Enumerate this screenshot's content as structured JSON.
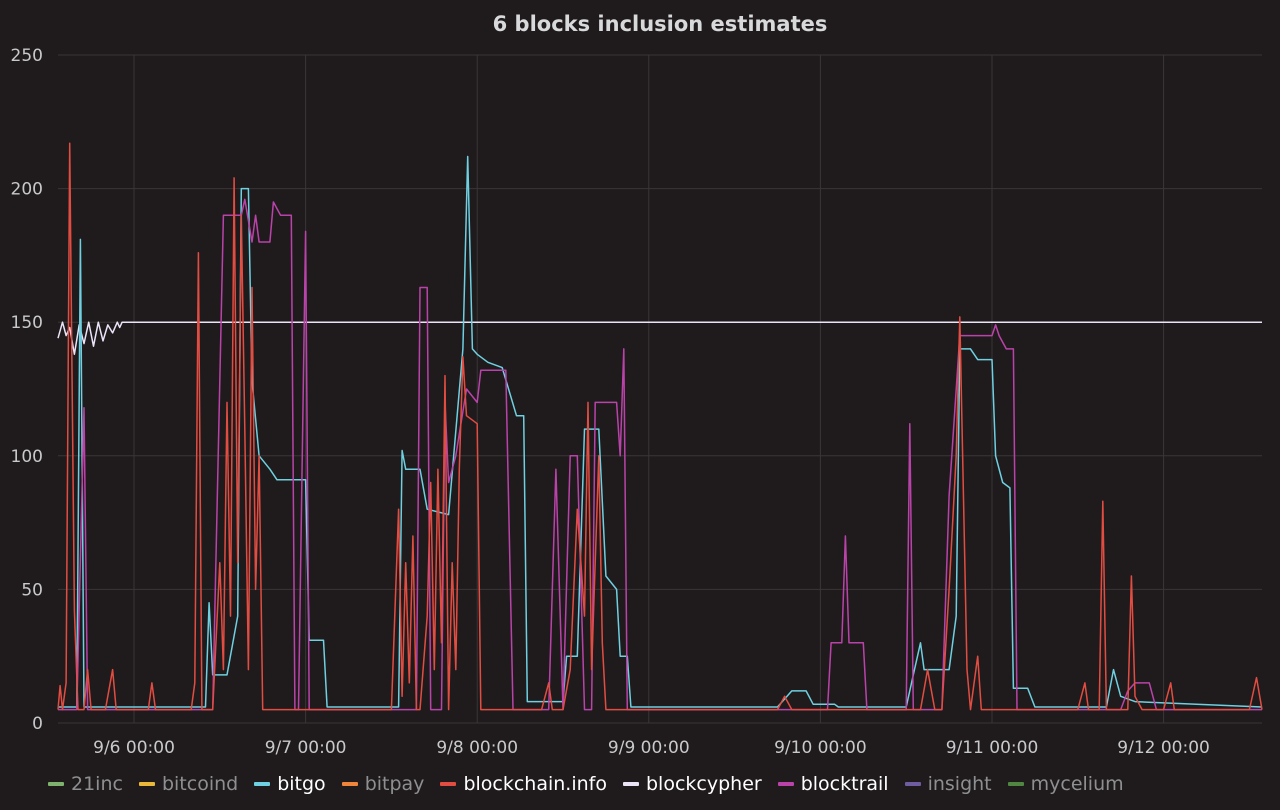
{
  "chart_data": {
    "type": "line",
    "title": "6 blocks inclusion estimates",
    "xlabel": "",
    "ylabel": "",
    "ylim": [
      0,
      250
    ],
    "yticks": [
      0,
      50,
      100,
      150,
      200,
      250
    ],
    "xlim": [
      "9/5 13:22",
      "9/12 13:46"
    ],
    "xticks": [
      "9/6 00:00",
      "9/7 00:00",
      "9/8 00:00",
      "9/9 00:00",
      "9/10 00:00",
      "9/11 00:00",
      "9/12 00:00"
    ],
    "grid": true,
    "legend_position": "bottom-left",
    "legend": [
      {
        "name": "21inc",
        "color": "#7eb26d",
        "highlighted": false
      },
      {
        "name": "bitcoind",
        "color": "#eab839",
        "highlighted": false
      },
      {
        "name": "bitgo",
        "color": "#6ed0e0",
        "highlighted": true
      },
      {
        "name": "bitpay",
        "color": "#ef843c",
        "highlighted": false
      },
      {
        "name": "blockchain.info",
        "color": "#e24d42",
        "highlighted": true
      },
      {
        "name": "blockcypher",
        "color": "#ebe3f8",
        "highlighted": true
      },
      {
        "name": "blocktrail",
        "color": "#ba43a9",
        "highlighted": true
      },
      {
        "name": "insight",
        "color": "#705da0",
        "highlighted": false
      },
      {
        "name": "mycelium",
        "color": "#508642",
        "highlighted": false
      }
    ],
    "series": [
      {
        "name": "blockcypher",
        "color": "#ebe3f8",
        "points": [
          [
            "9/5 13:22",
            144
          ],
          [
            "9/5 14:00",
            150
          ],
          [
            "9/5 14:30",
            145
          ],
          [
            "9/5 15:00",
            148
          ],
          [
            "9/5 15:40",
            138
          ],
          [
            "9/5 16:20",
            149
          ],
          [
            "9/5 17:00",
            142
          ],
          [
            "9/5 17:40",
            150
          ],
          [
            "9/5 18:20",
            141
          ],
          [
            "9/5 19:00",
            150
          ],
          [
            "9/5 19:40",
            143
          ],
          [
            "9/5 20:20",
            149
          ],
          [
            "9/5 21:00",
            146
          ],
          [
            "9/5 21:40",
            150
          ],
          [
            "9/5 22:00",
            148
          ],
          [
            "9/5 22:20",
            150
          ],
          [
            "9/12 13:46",
            150
          ]
        ]
      },
      {
        "name": "bitgo",
        "color": "#6ed0e0",
        "points": [
          [
            "9/5 13:22",
            6
          ],
          [
            "9/5 16:00",
            6
          ],
          [
            "9/5 16:30",
            181
          ],
          [
            "9/5 17:00",
            6
          ],
          [
            "9/6 10:00",
            6
          ],
          [
            "9/6 10:30",
            45
          ],
          [
            "9/6 11:00",
            18
          ],
          [
            "9/6 13:00",
            18
          ],
          [
            "9/6 14:30",
            40
          ],
          [
            "9/6 15:00",
            200
          ],
          [
            "9/6 16:00",
            200
          ],
          [
            "9/6 16:30",
            128
          ],
          [
            "9/6 17:30",
            100
          ],
          [
            "9/6 19:00",
            95
          ],
          [
            "9/6 20:00",
            91
          ],
          [
            "9/7 00:00",
            91
          ],
          [
            "9/7 00:30",
            31
          ],
          [
            "9/7 02:30",
            31
          ],
          [
            "9/7 03:00",
            6
          ],
          [
            "9/7 13:00",
            6
          ],
          [
            "9/7 13:30",
            102
          ],
          [
            "9/7 14:00",
            95
          ],
          [
            "9/7 16:00",
            95
          ],
          [
            "9/7 17:00",
            80
          ],
          [
            "9/7 20:00",
            78
          ],
          [
            "9/7 22:00",
            140
          ],
          [
            "9/7 22:40",
            212
          ],
          [
            "9/7 23:20",
            140
          ],
          [
            "9/8 00:00",
            138
          ],
          [
            "9/8 01:30",
            135
          ],
          [
            "9/8 03:30",
            133
          ],
          [
            "9/8 05:30",
            115
          ],
          [
            "9/8 06:30",
            115
          ],
          [
            "9/8 07:00",
            8
          ],
          [
            "9/8 12:00",
            8
          ],
          [
            "9/8 12:30",
            25
          ],
          [
            "9/8 14:00",
            25
          ],
          [
            "9/8 15:00",
            110
          ],
          [
            "9/8 17:00",
            110
          ],
          [
            "9/8 18:00",
            55
          ],
          [
            "9/8 19:30",
            50
          ],
          [
            "9/8 20:00",
            25
          ],
          [
            "9/8 21:00",
            25
          ],
          [
            "9/8 21:30",
            6
          ],
          [
            "9/9 18:00",
            6
          ],
          [
            "9/9 20:00",
            12
          ],
          [
            "9/9 22:00",
            12
          ],
          [
            "9/9 23:00",
            7
          ],
          [
            "9/10 02:00",
            7
          ],
          [
            "9/10 02:30",
            6
          ],
          [
            "9/10 12:00",
            6
          ],
          [
            "9/10 13:00",
            18
          ],
          [
            "9/10 14:00",
            30
          ],
          [
            "9/10 14:30",
            20
          ],
          [
            "9/10 18:00",
            20
          ],
          [
            "9/10 19:00",
            40
          ],
          [
            "9/10 19:30",
            140
          ],
          [
            "9/10 21:00",
            140
          ],
          [
            "9/10 22:00",
            136
          ],
          [
            "9/11 00:00",
            136
          ],
          [
            "9/11 00:30",
            100
          ],
          [
            "9/11 01:30",
            90
          ],
          [
            "9/11 02:30",
            88
          ],
          [
            "9/11 03:00",
            13
          ],
          [
            "9/11 05:00",
            13
          ],
          [
            "9/11 06:00",
            6
          ],
          [
            "9/11 16:00",
            6
          ],
          [
            "9/11 17:00",
            20
          ],
          [
            "9/11 18:00",
            10
          ],
          [
            "9/11 20:00",
            8
          ],
          [
            "9/12 13:46",
            6
          ]
        ]
      },
      {
        "name": "blocktrail",
        "color": "#ba43a9",
        "points": [
          [
            "9/5 13:22",
            5
          ],
          [
            "9/5 16:00",
            5
          ],
          [
            "9/5 17:00",
            118
          ],
          [
            "9/5 17:30",
            5
          ],
          [
            "9/6 11:00",
            5
          ],
          [
            "9/6 12:30",
            190
          ],
          [
            "9/6 15:00",
            190
          ],
          [
            "9/6 15:30",
            196
          ],
          [
            "9/6 16:30",
            180
          ],
          [
            "9/6 17:00",
            190
          ],
          [
            "9/6 17:30",
            180
          ],
          [
            "9/6 19:00",
            180
          ],
          [
            "9/6 19:30",
            195
          ],
          [
            "9/6 20:30",
            190
          ],
          [
            "9/6 22:00",
            190
          ],
          [
            "9/6 22:30",
            5
          ],
          [
            "9/6 23:00",
            5
          ],
          [
            "9/7 00:00",
            184
          ],
          [
            "9/7 00:30",
            5
          ],
          [
            "9/7 12:00",
            5
          ],
          [
            "9/7 13:00",
            5
          ],
          [
            "9/7 15:30",
            5
          ],
          [
            "9/7 16:00",
            163
          ],
          [
            "9/7 17:00",
            163
          ],
          [
            "9/7 17:30",
            5
          ],
          [
            "9/7 19:00",
            5
          ],
          [
            "9/7 19:30",
            120
          ],
          [
            "9/7 20:00",
            90
          ],
          [
            "9/7 21:00",
            100
          ],
          [
            "9/7 22:30",
            125
          ],
          [
            "9/8 00:00",
            120
          ],
          [
            "9/8 00:30",
            132
          ],
          [
            "9/8 04:00",
            132
          ],
          [
            "9/8 05:00",
            5
          ],
          [
            "9/8 10:00",
            5
          ],
          [
            "9/8 11:00",
            95
          ],
          [
            "9/8 12:00",
            5
          ],
          [
            "9/8 13:00",
            100
          ],
          [
            "9/8 14:00",
            100
          ],
          [
            "9/8 15:00",
            5
          ],
          [
            "9/8 16:00",
            5
          ],
          [
            "9/8 16:30",
            120
          ],
          [
            "9/8 19:30",
            120
          ],
          [
            "9/8 20:00",
            100
          ],
          [
            "9/8 20:30",
            140
          ],
          [
            "9/8 21:00",
            5
          ],
          [
            "9/10 01:00",
            5
          ],
          [
            "9/10 01:30",
            30
          ],
          [
            "9/10 03:00",
            30
          ],
          [
            "9/10 03:30",
            70
          ],
          [
            "9/10 04:00",
            30
          ],
          [
            "9/10 06:00",
            30
          ],
          [
            "9/10 06:30",
            5
          ],
          [
            "9/10 10:00",
            5
          ],
          [
            "9/10 10:30",
            5
          ],
          [
            "9/10 12:00",
            5
          ],
          [
            "9/10 12:30",
            112
          ],
          [
            "9/10 13:00",
            5
          ],
          [
            "9/10 17:00",
            5
          ],
          [
            "9/10 18:00",
            85
          ],
          [
            "9/10 19:30",
            145
          ],
          [
            "9/11 00:00",
            145
          ],
          [
            "9/11 00:30",
            149
          ],
          [
            "9/11 01:00",
            145
          ],
          [
            "9/11 02:00",
            140
          ],
          [
            "9/11 03:00",
            140
          ],
          [
            "9/11 03:30",
            5
          ],
          [
            "9/11 11:00",
            5
          ],
          [
            "9/11 18:00",
            5
          ],
          [
            "9/11 19:00",
            12
          ],
          [
            "9/11 20:00",
            15
          ],
          [
            "9/11 22:00",
            15
          ],
          [
            "9/11 23:00",
            5
          ],
          [
            "9/12 13:46",
            5
          ]
        ]
      },
      {
        "name": "blockchain.info",
        "color": "#e24d42",
        "points": [
          [
            "9/5 13:22",
            5
          ],
          [
            "9/5 13:40",
            14
          ],
          [
            "9/5 14:00",
            5
          ],
          [
            "9/5 14:30",
            15
          ],
          [
            "9/5 15:00",
            217
          ],
          [
            "9/5 15:40",
            42
          ],
          [
            "9/5 16:10",
            5
          ],
          [
            "9/5 17:00",
            5
          ],
          [
            "9/5 17:30",
            20
          ],
          [
            "9/5 18:00",
            5
          ],
          [
            "9/5 20:00",
            5
          ],
          [
            "9/5 21:00",
            20
          ],
          [
            "9/5 21:30",
            5
          ],
          [
            "9/6 00:00",
            5
          ],
          [
            "9/6 02:00",
            5
          ],
          [
            "9/6 02:30",
            15
          ],
          [
            "9/6 03:00",
            5
          ],
          [
            "9/6 08:00",
            5
          ],
          [
            "9/6 08:30",
            15
          ],
          [
            "9/6 09:00",
            176
          ],
          [
            "9/6 09:30",
            5
          ],
          [
            "9/6 11:00",
            5
          ],
          [
            "9/6 12:00",
            60
          ],
          [
            "9/6 12:30",
            20
          ],
          [
            "9/6 13:00",
            120
          ],
          [
            "9/6 13:30",
            40
          ],
          [
            "9/6 14:00",
            204
          ],
          [
            "9/6 14:30",
            60
          ],
          [
            "9/6 15:00",
            190
          ],
          [
            "9/6 15:30",
            110
          ],
          [
            "9/6 16:00",
            20
          ],
          [
            "9/6 16:30",
            163
          ],
          [
            "9/6 17:00",
            50
          ],
          [
            "9/6 17:30",
            100
          ],
          [
            "9/6 18:00",
            5
          ],
          [
            "9/7 02:00",
            5
          ],
          [
            "9/7 09:00",
            5
          ],
          [
            "9/7 10:00",
            5
          ],
          [
            "9/7 12:00",
            5
          ],
          [
            "9/7 13:00",
            80
          ],
          [
            "9/7 13:30",
            10
          ],
          [
            "9/7 14:00",
            60
          ],
          [
            "9/7 14:30",
            15
          ],
          [
            "9/7 15:00",
            70
          ],
          [
            "9/7 15:30",
            5
          ],
          [
            "9/7 16:00",
            5
          ],
          [
            "9/7 17:00",
            40
          ],
          [
            "9/7 17:30",
            90
          ],
          [
            "9/7 18:00",
            20
          ],
          [
            "9/7 18:30",
            95
          ],
          [
            "9/7 19:00",
            30
          ],
          [
            "9/7 19:30",
            130
          ],
          [
            "9/7 20:00",
            5
          ],
          [
            "9/7 20:30",
            60
          ],
          [
            "9/7 21:00",
            20
          ],
          [
            "9/7 21:30",
            95
          ],
          [
            "9/7 22:00",
            137
          ],
          [
            "9/7 22:30",
            115
          ],
          [
            "9/8 00:00",
            112
          ],
          [
            "9/8 00:30",
            5
          ],
          [
            "9/8 06:00",
            5
          ],
          [
            "9/8 08:00",
            5
          ],
          [
            "9/8 09:00",
            5
          ],
          [
            "9/8 10:00",
            15
          ],
          [
            "9/8 10:30",
            5
          ],
          [
            "9/8 12:00",
            5
          ],
          [
            "9/8 13:00",
            20
          ],
          [
            "9/8 14:00",
            80
          ],
          [
            "9/8 15:00",
            40
          ],
          [
            "9/8 15:30",
            120
          ],
          [
            "9/8 16:00",
            20
          ],
          [
            "9/8 17:00",
            100
          ],
          [
            "9/8 17:30",
            30
          ],
          [
            "9/8 18:00",
            5
          ],
          [
            "9/8 20:00",
            5
          ],
          [
            "9/9 00:00",
            5
          ],
          [
            "9/9 18:00",
            5
          ],
          [
            "9/9 19:00",
            10
          ],
          [
            "9/9 20:00",
            5
          ],
          [
            "9/10 08:00",
            5
          ],
          [
            "9/10 12:00",
            5
          ],
          [
            "9/10 14:00",
            5
          ],
          [
            "9/10 15:00",
            20
          ],
          [
            "9/10 16:00",
            5
          ],
          [
            "9/10 17:00",
            5
          ],
          [
            "9/10 18:00",
            50
          ],
          [
            "9/10 19:00",
            100
          ],
          [
            "9/10 19:30",
            152
          ],
          [
            "9/10 20:30",
            20
          ],
          [
            "9/10 21:00",
            5
          ],
          [
            "9/10 22:00",
            25
          ],
          [
            "9/10 22:30",
            5
          ],
          [
            "9/11 00:00",
            5
          ],
          [
            "9/11 12:00",
            5
          ],
          [
            "9/11 13:00",
            15
          ],
          [
            "9/11 13:30",
            5
          ],
          [
            "9/11 15:00",
            5
          ],
          [
            "9/11 15:30",
            83
          ],
          [
            "9/11 16:00",
            5
          ],
          [
            "9/11 19:00",
            5
          ],
          [
            "9/11 19:30",
            55
          ],
          [
            "9/11 20:00",
            10
          ],
          [
            "9/11 21:00",
            5
          ],
          [
            "9/12 00:00",
            5
          ],
          [
            "9/12 01:00",
            15
          ],
          [
            "9/12 01:30",
            5
          ],
          [
            "9/12 12:00",
            5
          ],
          [
            "9/12 13:00",
            17
          ],
          [
            "9/12 13:46",
            5
          ]
        ]
      }
    ]
  }
}
